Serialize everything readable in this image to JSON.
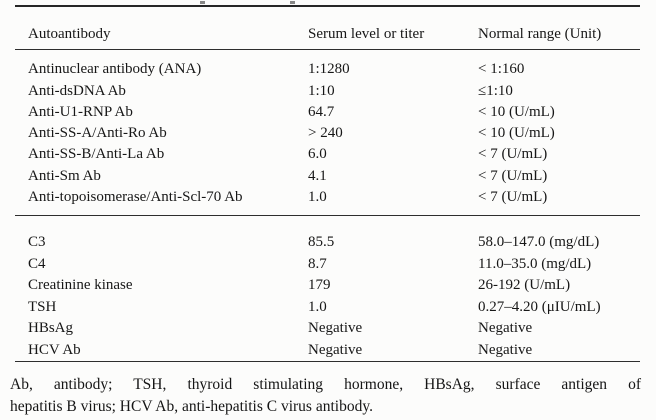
{
  "table": {
    "columns": [
      {
        "label": "Autoantibody"
      },
      {
        "label": "Serum level or titer"
      },
      {
        "label": "Normal range (Unit)"
      }
    ],
    "sections": [
      {
        "rows": [
          [
            "Antinuclear antibody (ANA)",
            "1:1280",
            "< 1:160"
          ],
          [
            "Anti-dsDNA Ab",
            "1:10",
            "≤1:10"
          ],
          [
            "Anti-U1-RNP Ab",
            "64.7",
            "< 10 (U/mL)"
          ],
          [
            "Anti-SS-A/Anti-Ro Ab",
            "> 240",
            "< 10 (U/mL)"
          ],
          [
            "Anti-SS-B/Anti-La Ab",
            "6.0",
            "< 7 (U/mL)"
          ],
          [
            "Anti-Sm Ab",
            "4.1",
            "< 7 (U/mL)"
          ],
          [
            "Anti-topoisomerase/Anti-Scl-70 Ab",
            "1.0",
            "< 7 (U/mL)"
          ]
        ]
      },
      {
        "rows": [
          [
            "C3",
            "85.5",
            "58.0–147.0 (mg/dL)"
          ],
          [
            "C4",
            "8.7",
            "11.0–35.0 (mg/dL)"
          ],
          [
            "Creatinine kinase",
            "179",
            "26-192 (U/mL)"
          ],
          [
            "TSH",
            "1.0",
            "0.27–4.20 (μIU/mL)"
          ],
          [
            "HBsAg",
            "Negative",
            "Negative"
          ],
          [
            "HCV Ab",
            "Negative",
            "Negative"
          ]
        ]
      }
    ]
  },
  "footnote": {
    "full": "Ab, antibody; TSH, thyroid stimulating hormone, HBsAg, surface antigen of hepatitis B virus; HCV Ab, anti-hepatitis C virus antibody.",
    "line1": "Ab, antibody; TSH, thyroid stimulating hormone, HBsAg, surface antigen of",
    "line2": "hepatitis B virus; HCV Ab, anti-hepatitis C virus antibody."
  },
  "colors": {
    "background": "#fcfcfb",
    "text": "#171717",
    "rule": "#262626"
  }
}
